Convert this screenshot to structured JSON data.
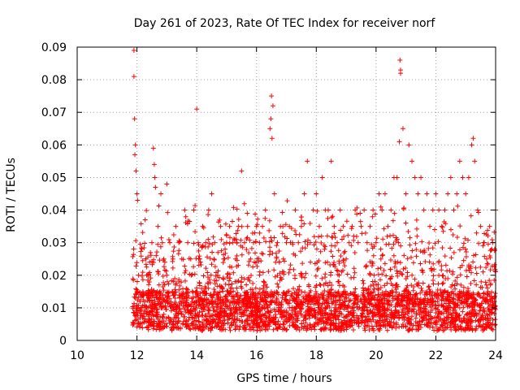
{
  "chart_data": {
    "type": "scatter",
    "title": "Day 261 of 2023, Rate Of TEC Index for receiver norf",
    "xlabel": "GPS time / hours",
    "ylabel": "ROTI / TECUs",
    "xlim": [
      10,
      24
    ],
    "ylim": [
      0,
      0.09
    ],
    "x_ticks": [
      10,
      12,
      14,
      16,
      18,
      20,
      22,
      24
    ],
    "x_tick_labels": [
      "10",
      "12",
      "14",
      "16",
      "18",
      "20",
      "22",
      "24"
    ],
    "y_ticks": [
      0,
      0.01,
      0.02,
      0.03,
      0.04,
      0.05,
      0.06,
      0.07,
      0.08,
      0.09
    ],
    "y_tick_labels": [
      "0",
      "0.01",
      "0.02",
      "0.03",
      "0.04",
      "0.05",
      "0.06",
      "0.07",
      "0.08",
      "0.09"
    ],
    "grid": true,
    "marker": "plus",
    "series": [
      {
        "name": "ROTI",
        "color": "#ff0000",
        "x": [
          11.9,
          11.9,
          11.92,
          11.95,
          12.0,
          12.05,
          12.1,
          12.15,
          12.2,
          12.3,
          12.4,
          12.5,
          12.55,
          12.6,
          12.7,
          12.8,
          12.85,
          12.9,
          13.0,
          13.1,
          13.2,
          13.3,
          13.4,
          13.5,
          13.6,
          13.7,
          13.8,
          13.9,
          14.0,
          14.05,
          14.1,
          14.2,
          14.3,
          14.4,
          14.5,
          14.6,
          14.7,
          14.8,
          14.9,
          15.0,
          15.1,
          15.2,
          15.3,
          15.4,
          15.5,
          15.6,
          15.7,
          15.8,
          15.9,
          16.0,
          16.1,
          16.2,
          16.3,
          16.45,
          16.5,
          16.55,
          16.6,
          16.7,
          16.8,
          16.9,
          17.0,
          17.1,
          17.2,
          17.3,
          17.4,
          17.5,
          17.6,
          17.7,
          17.8,
          17.9,
          18.0,
          18.1,
          18.2,
          18.3,
          18.4,
          18.5,
          18.6,
          18.7,
          18.8,
          18.9,
          19.0,
          19.1,
          19.2,
          19.3,
          19.4,
          19.5,
          19.6,
          19.7,
          19.8,
          19.9,
          20.0,
          20.1,
          20.2,
          20.3,
          20.4,
          20.5,
          20.6,
          20.7,
          20.8,
          20.82,
          20.9,
          21.0,
          21.1,
          21.2,
          21.3,
          21.4,
          21.5,
          21.6,
          21.7,
          21.8,
          21.9,
          22.0,
          22.1,
          22.2,
          22.3,
          22.4,
          22.5,
          22.6,
          22.7,
          22.8,
          22.9,
          23.0,
          23.1,
          23.2,
          23.25,
          23.3,
          23.4,
          23.5,
          23.6,
          23.7,
          23.8,
          23.9,
          24.0,
          12.0,
          12.3,
          12.6,
          12.9,
          13.2,
          13.5,
          13.8,
          14.1,
          14.4,
          14.7,
          15.0,
          15.3,
          15.6,
          15.9,
          16.2,
          16.5,
          16.8,
          17.1,
          17.4,
          17.7,
          18.0,
          18.3,
          18.6,
          18.9,
          19.2,
          19.5,
          19.8,
          20.1,
          20.4,
          20.7,
          21.0,
          21.3,
          21.6,
          21.9,
          22.2,
          22.5,
          22.8,
          23.1,
          23.4,
          23.7,
          12.1,
          12.8,
          13.4,
          14.2,
          15.1,
          15.7,
          16.4,
          17.3,
          18.1,
          18.5,
          19.0,
          20.2,
          20.9,
          21.5,
          22.1,
          22.6,
          23.0,
          23.5,
          23.9,
          16.52,
          16.48,
          20.82,
          20.78,
          11.93,
          11.97,
          12.02,
          12.58,
          12.62,
          13.0
        ],
        "y": [
          0.089,
          0.081,
          0.068,
          0.06,
          0.045,
          0.02,
          0.012,
          0.01,
          0.015,
          0.025,
          0.02,
          0.03,
          0.059,
          0.05,
          0.035,
          0.045,
          0.03,
          0.025,
          0.02,
          0.03,
          0.025,
          0.035,
          0.03,
          0.025,
          0.04,
          0.03,
          0.025,
          0.04,
          0.071,
          0.03,
          0.025,
          0.035,
          0.03,
          0.04,
          0.045,
          0.03,
          0.02,
          0.035,
          0.025,
          0.03,
          0.035,
          0.03,
          0.025,
          0.035,
          0.052,
          0.03,
          0.035,
          0.025,
          0.03,
          0.035,
          0.03,
          0.035,
          0.04,
          0.065,
          0.075,
          0.072,
          0.045,
          0.03,
          0.035,
          0.025,
          0.03,
          0.035,
          0.03,
          0.04,
          0.03,
          0.035,
          0.045,
          0.055,
          0.03,
          0.04,
          0.045,
          0.035,
          0.05,
          0.04,
          0.04,
          0.055,
          0.035,
          0.03,
          0.04,
          0.035,
          0.025,
          0.03,
          0.035,
          0.04,
          0.03,
          0.035,
          0.04,
          0.03,
          0.035,
          0.04,
          0.03,
          0.045,
          0.04,
          0.045,
          0.035,
          0.04,
          0.05,
          0.05,
          0.086,
          0.083,
          0.065,
          0.045,
          0.06,
          0.055,
          0.05,
          0.045,
          0.05,
          0.04,
          0.045,
          0.035,
          0.04,
          0.045,
          0.04,
          0.035,
          0.04,
          0.045,
          0.05,
          0.04,
          0.045,
          0.055,
          0.05,
          0.045,
          0.05,
          0.06,
          0.062,
          0.055,
          0.04,
          0.035,
          0.03,
          0.025,
          0.035,
          0.03,
          0.04,
          0.015,
          0.01,
          0.012,
          0.008,
          0.01,
          0.012,
          0.009,
          0.011,
          0.01,
          0.008,
          0.012,
          0.01,
          0.009,
          0.011,
          0.01,
          0.012,
          0.008,
          0.01,
          0.011,
          0.009,
          0.012,
          0.01,
          0.008,
          0.011,
          0.01,
          0.012,
          0.009,
          0.01,
          0.011,
          0.013,
          0.01,
          0.012,
          0.009,
          0.011,
          0.014,
          0.012,
          0.01,
          0.013,
          0.011,
          0.012,
          0.005,
          0.004,
          0.006,
          0.005,
          0.004,
          0.006,
          0.005,
          0.004,
          0.006,
          0.005,
          0.004,
          0.006,
          0.005,
          0.004,
          0.006,
          0.005,
          0.004,
          0.006,
          0.005,
          0.062,
          0.068,
          0.082,
          0.061,
          0.057,
          0.052,
          0.043,
          0.054,
          0.047,
          0.048
        ]
      }
    ],
    "generated_scatter": {
      "seed": 261,
      "count": 3200,
      "note": "dense background ROTI points",
      "x_range": [
        11.85,
        24
      ],
      "y_base": 0.009,
      "y_spread": 0.028
    }
  }
}
